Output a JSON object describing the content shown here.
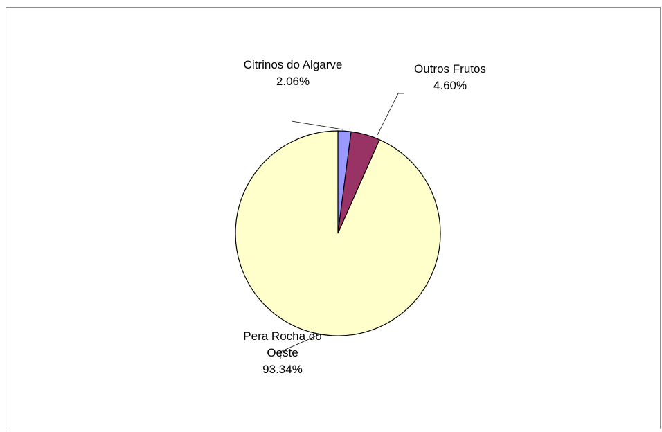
{
  "chart_data": {
    "type": "pie",
    "title": "",
    "slices": [
      {
        "label": "Citrinos do Algarve",
        "label_lines": [
          "Citrinos do Algarve"
        ],
        "value": 2.06,
        "value_text": "2.06%",
        "color": "#9999ff"
      },
      {
        "label": "Outros Frutos",
        "label_lines": [
          "Outros Frutos"
        ],
        "value": 4.6,
        "value_text": "4.60%",
        "color": "#993366"
      },
      {
        "label": "Pera Rocha do Oeste",
        "label_lines": [
          "Pera Rocha do",
          "Oeste"
        ],
        "value": 93.34,
        "value_text": "93.34%",
        "color": "#ffffcc"
      }
    ],
    "start_angle_deg": 0,
    "direction": "clockwise",
    "slice_border_color": "#000000",
    "legend": "none"
  }
}
